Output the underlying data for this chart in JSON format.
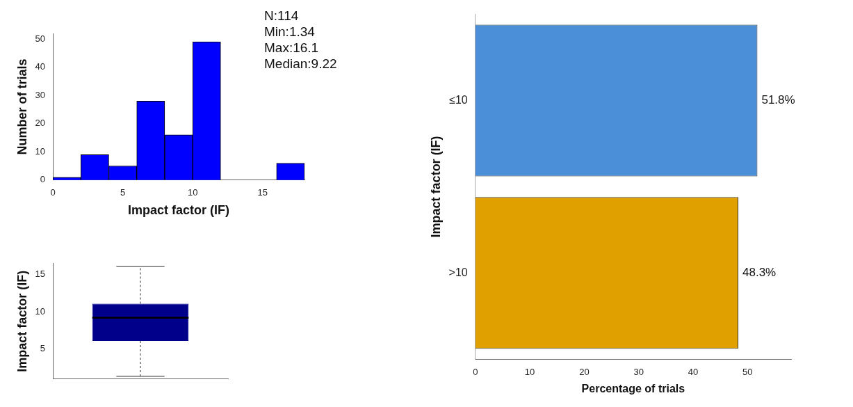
{
  "chart_data": [
    {
      "type": "histogram",
      "xlabel": "Impact factor (IF)",
      "ylabel": "Number of trials",
      "bins": [
        0,
        2,
        4,
        6,
        8,
        10,
        12,
        14,
        16,
        18
      ],
      "values": [
        1,
        9,
        5,
        28,
        16,
        49,
        0,
        0,
        6
      ],
      "color": "#0000ff",
      "xlim": [
        0,
        18
      ],
      "xticks": [
        0,
        5,
        10,
        15
      ],
      "ylim": [
        0,
        52
      ],
      "yticks": [
        0,
        10,
        20,
        30,
        40,
        50
      ],
      "grid": false,
      "legend": false,
      "annotations": [
        "N:114",
        "Min:1.34",
        "Max:16.1",
        "Median:9.22"
      ]
    },
    {
      "type": "box",
      "ylabel": "Impact factor (IF)",
      "categories": [
        null
      ],
      "color": "#00008b",
      "boxes": [
        {
          "low": 1.34,
          "q1": 6.1,
          "median": 9.22,
          "q3": 11.1,
          "high": 16.1
        }
      ],
      "ylim": [
        1,
        16.5
      ],
      "yticks": [
        5,
        10,
        15
      ],
      "grid": false,
      "legend": false
    },
    {
      "type": "bar",
      "orientation": "horizontal",
      "xlabel": "Percentage of trials",
      "ylabel": "Impact factor (IF)",
      "categories": [
        "≤10",
        ">10"
      ],
      "values": [
        51.8,
        48.3
      ],
      "colors": [
        "#4a8fd8",
        "#e0a000"
      ],
      "value_labels": [
        "51.8%",
        "48.3%"
      ],
      "xlim": [
        0,
        58
      ],
      "xticks": [
        0,
        10,
        20,
        30,
        40,
        50
      ],
      "grid": false,
      "legend": false
    }
  ]
}
